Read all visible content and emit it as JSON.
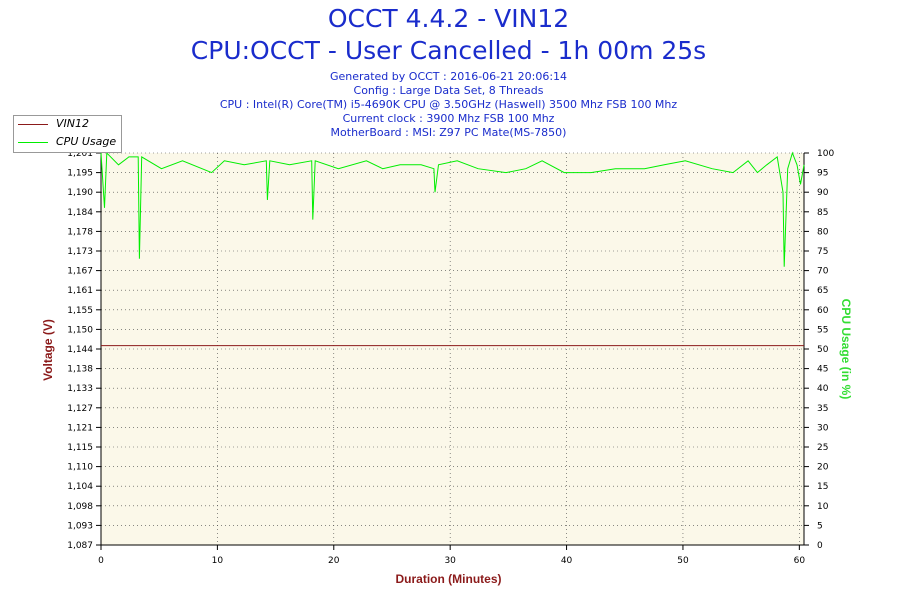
{
  "header": {
    "title": "OCCT 4.4.2 - VIN12",
    "subtitle": "CPU:OCCT - User Cancelled - 1h 00m 25s",
    "info_lines": [
      "Generated by OCCT : 2016-06-21 20:06:14",
      "Config : Large Data Set, 8 Threads",
      "CPU : Intel(R) Core(TM) i5-4690K CPU @ 3.50GHz (Haswell) 3500 Mhz FSB 100 Mhz",
      "Current clock : 3900 Mhz FSB 100 Mhz",
      "MotherBoard : MSI: Z97 PC Mate(MS-7850)"
    ]
  },
  "chart_data": {
    "type": "line",
    "xlabel": "Duration (Minutes)",
    "ylabel": "Voltage (V)",
    "y2label": "CPU Usage (in %)",
    "xlim": [
      0,
      60.4
    ],
    "ylim": [
      1.087,
      1.201
    ],
    "y2lim": [
      0,
      100
    ],
    "x_ticks": [
      "0",
      "10",
      "20",
      "30",
      "40",
      "50",
      "60"
    ],
    "y_ticks": [
      "1,087",
      "1,093",
      "1,098",
      "1,104",
      "1,110",
      "1,115",
      "1,121",
      "1,127",
      "1,133",
      "1,138",
      "1,144",
      "1,150",
      "1,155",
      "1,161",
      "1,167",
      "1,173",
      "1,178",
      "1,184",
      "1,190",
      "1,195",
      "1,201"
    ],
    "y2_ticks": [
      "0",
      "5",
      "10",
      "15",
      "20",
      "25",
      "30",
      "35",
      "40",
      "45",
      "50",
      "55",
      "60",
      "65",
      "70",
      "75",
      "80",
      "85",
      "90",
      "95",
      "100"
    ],
    "grid": true,
    "legend_position": "top-left",
    "series": [
      {
        "name": "VIN12",
        "color": "#8b1a1a",
        "axis": "left",
        "x": [
          0,
          60.4
        ],
        "values": [
          1.145,
          1.145
        ]
      },
      {
        "name": "CPU Usage",
        "color": "#00ee00",
        "axis": "right",
        "x": [
          0,
          0.3,
          0.5,
          1.5,
          2.4,
          3.2,
          3.3,
          3.5,
          5.2,
          7.0,
          9.5,
          10.6,
          12.3,
          14.2,
          14.3,
          14.5,
          16.2,
          18.1,
          18.2,
          18.4,
          20.4,
          22.8,
          24.2,
          25.7,
          27.5,
          28.6,
          28.7,
          29.0,
          30.6,
          32.4,
          34.8,
          36.5,
          37.9,
          39.8,
          42.1,
          44.2,
          46.7,
          48.4,
          50.2,
          52.5,
          54.3,
          55.6,
          56.4,
          57.2,
          58.1,
          58.6,
          58.7,
          59.0,
          59.4,
          59.8,
          60.1,
          60.4
        ],
        "values": [
          100,
          86,
          100,
          97,
          99,
          99,
          73,
          99,
          96,
          98,
          95,
          98,
          97,
          98,
          88,
          98,
          97,
          98,
          83,
          98,
          96,
          98,
          96,
          97,
          97,
          96,
          90,
          97,
          98,
          96,
          95,
          96,
          98,
          95,
          95,
          96,
          96,
          97,
          98,
          96,
          95,
          98,
          95,
          97,
          99,
          90,
          71,
          96,
          100,
          97,
          92,
          97
        ]
      }
    ]
  }
}
